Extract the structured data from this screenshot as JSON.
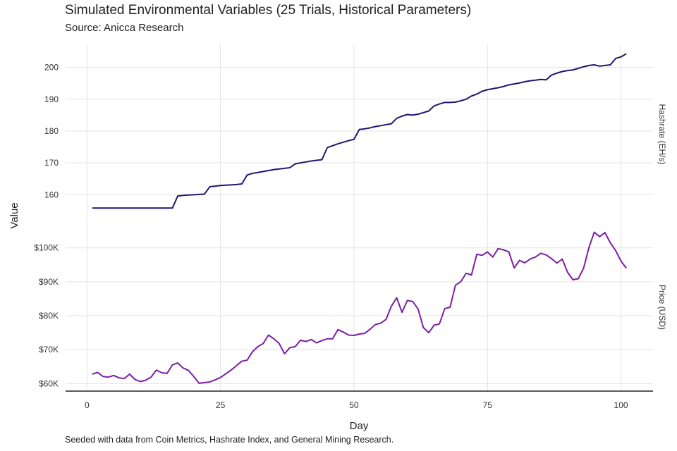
{
  "title": "Simulated Environmental Variables (25 Trials, Historical Parameters)",
  "subtitle": "Source: Anicca Research",
  "caption": "Seeded with data from Coin Metrics, Hashrate Index, and General Mining Research.",
  "colors": {
    "hashrate": "#1f1670",
    "price": "#7b1fa2",
    "grid": "#e3e3e3",
    "axis": "#222222"
  },
  "chart_data": {
    "type": "line",
    "xlabel": "Day",
    "ylabel": "Value",
    "xlim": [
      -4,
      106
    ],
    "x_ticks": [
      0,
      25,
      50,
      75,
      100
    ],
    "x_tick_labels": [
      "0",
      "25",
      "50",
      "75",
      "100"
    ],
    "grid": true,
    "panels": [
      {
        "strip_label": "Hashrate (EH/s)",
        "ylim": [
          151,
          207
        ],
        "y_ticks": [
          160,
          170,
          180,
          190,
          200
        ],
        "y_tick_labels": [
          "160",
          "170",
          "180",
          "190",
          "200"
        ],
        "series": {
          "x": [
            1,
            2,
            3,
            4,
            5,
            6,
            7,
            8,
            9,
            10,
            11,
            12,
            13,
            14,
            15,
            16,
            17,
            18,
            19,
            20,
            21,
            22,
            23,
            24,
            25,
            26,
            27,
            28,
            29,
            30,
            31,
            32,
            33,
            34,
            35,
            36,
            37,
            38,
            39,
            40,
            41,
            42,
            43,
            44,
            45,
            46,
            47,
            48,
            49,
            50,
            51,
            52,
            53,
            54,
            55,
            56,
            57,
            58,
            59,
            60,
            61,
            62,
            63,
            64,
            65,
            66,
            67,
            68,
            69,
            70,
            71,
            72,
            73,
            74,
            75,
            76,
            77,
            78,
            79,
            80,
            81,
            82,
            83,
            84,
            85,
            86,
            87,
            88,
            89,
            90,
            91,
            92,
            93,
            94,
            95,
            96,
            97,
            98,
            99,
            100,
            101
          ],
          "values": [
            155.8,
            155.8,
            155.8,
            155.8,
            155.8,
            155.8,
            155.8,
            155.8,
            155.8,
            155.8,
            155.8,
            155.8,
            155.8,
            155.8,
            155.8,
            155.8,
            159.6,
            159.8,
            159.9,
            160.0,
            160.1,
            160.2,
            162.5,
            162.7,
            162.9,
            163.0,
            163.1,
            163.2,
            163.4,
            166.2,
            166.7,
            167.0,
            167.3,
            167.6,
            167.9,
            168.1,
            168.3,
            168.5,
            169.7,
            170.0,
            170.3,
            170.6,
            170.8,
            171.0,
            174.8,
            175.4,
            176.0,
            176.5,
            177.0,
            177.4,
            180.5,
            180.7,
            181.0,
            181.4,
            181.7,
            182.0,
            182.3,
            184.0,
            184.7,
            185.2,
            185.0,
            185.3,
            185.8,
            186.3,
            187.9,
            188.5,
            189.0,
            189.0,
            189.1,
            189.5,
            190.0,
            191.0,
            191.6,
            192.5,
            193.0,
            193.3,
            193.6,
            194.0,
            194.5,
            194.8,
            195.1,
            195.5,
            195.8,
            196.0,
            196.2,
            196.1,
            197.6,
            198.2,
            198.7,
            199.0,
            199.2,
            199.7,
            200.2,
            200.6,
            200.8,
            200.4,
            200.6,
            200.8,
            202.8,
            203.3,
            204.3
          ]
        }
      },
      {
        "strip_label": "Price (USD)",
        "ylim": [
          58000,
          107000
        ],
        "y_ticks": [
          60000,
          70000,
          80000,
          90000,
          100000
        ],
        "y_tick_labels": [
          "$60K",
          "$70K",
          "$80K",
          "$90K",
          "$100K"
        ],
        "series": {
          "x": [
            1,
            2,
            3,
            4,
            5,
            6,
            7,
            8,
            9,
            10,
            11,
            12,
            13,
            14,
            15,
            16,
            17,
            18,
            19,
            20,
            21,
            22,
            23,
            24,
            25,
            26,
            27,
            28,
            29,
            30,
            31,
            32,
            33,
            34,
            35,
            36,
            37,
            38,
            39,
            40,
            41,
            42,
            43,
            44,
            45,
            46,
            47,
            48,
            49,
            50,
            51,
            52,
            53,
            54,
            55,
            56,
            57,
            58,
            59,
            60,
            61,
            62,
            63,
            64,
            65,
            66,
            67,
            68,
            69,
            70,
            71,
            72,
            73,
            74,
            75,
            76,
            77,
            78,
            79,
            80,
            81,
            82,
            83,
            84,
            85,
            86,
            87,
            88,
            89,
            90,
            91,
            92,
            93,
            94,
            95,
            96,
            97,
            98,
            99,
            100,
            101
          ],
          "values": [
            62800,
            63300,
            62100,
            61900,
            62400,
            61700,
            61500,
            62800,
            61200,
            60600,
            61000,
            61900,
            64000,
            63200,
            63000,
            65500,
            66100,
            64600,
            63900,
            62100,
            60100,
            60300,
            60500,
            61100,
            61800,
            62900,
            64000,
            65300,
            66600,
            66900,
            69400,
            70900,
            71800,
            74300,
            73200,
            71800,
            68800,
            70600,
            70900,
            72800,
            72400,
            73000,
            72000,
            72700,
            73200,
            73200,
            75900,
            75200,
            74300,
            74200,
            74600,
            74800,
            76000,
            77400,
            77800,
            78900,
            82800,
            85300,
            81000,
            84500,
            84200,
            82000,
            76500,
            75000,
            77200,
            77600,
            82100,
            82500,
            89000,
            90000,
            92500,
            92000,
            98100,
            97800,
            98800,
            97300,
            99800,
            99400,
            98800,
            94100,
            96300,
            95600,
            96700,
            97300,
            98400,
            97900,
            96800,
            95500,
            96700,
            92800,
            90600,
            90900,
            94000,
            100100,
            104600,
            103300,
            104500,
            101500,
            99200,
            96100,
            94000
          ]
        }
      }
    ]
  }
}
